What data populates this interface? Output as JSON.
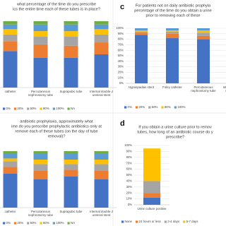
{
  "chart_data": [
    {
      "type": "bar",
      "stacked": true,
      "title": [
        "what percentage of the time do you prescribe",
        "ics the entire time each of these tubes is in place?"
      ],
      "categories": [
        "catheter",
        "Percutaneous nephrostomy tube",
        "Suprapubic tube",
        "Internal double-J ureteral stent"
      ],
      "series": [
        {
          "name": "0%",
          "color": "#4472c4",
          "values": [
            55,
            45,
            45,
            50
          ]
        },
        {
          "name": "20%",
          "color": "#ed7d31",
          "values": [
            15,
            20,
            18,
            18
          ]
        },
        {
          "name": "50%",
          "color": "#a5a5a5",
          "values": [
            10,
            12,
            14,
            12
          ]
        },
        {
          "name": "80%",
          "color": "#ffc000",
          "values": [
            8,
            8,
            8,
            8
          ]
        },
        {
          "name": "100%",
          "color": "#5b9bd5",
          "values": [
            7,
            10,
            10,
            7
          ]
        },
        {
          "name": "NA",
          "color": "#70ad47",
          "values": [
            5,
            5,
            5,
            5
          ]
        }
      ],
      "ylim": [
        0,
        100
      ],
      "grid": false
    },
    {
      "type": "bar",
      "stacked": true,
      "label": "c",
      "title": [
        "For patients not on daily antibiotic prophyla",
        "percentage of the time do you obtain a urine",
        "prior to removing each of these"
      ],
      "categories": [
        "Hypospadias stent",
        "Foley catheter",
        "Percutaneous nephrostomy tube",
        "Internal double-J ureteral stent"
      ],
      "series": [
        {
          "name": "0%",
          "color": "#4472c4",
          "values": [
            88,
            82,
            80,
            75
          ]
        },
        {
          "name": "20%",
          "color": "#ed7d31",
          "values": [
            4,
            8,
            6,
            10
          ]
        },
        {
          "name": "50%",
          "color": "#a5a5a5",
          "values": [
            2,
            4,
            6,
            6
          ]
        },
        {
          "name": "80%",
          "color": "#ffc000",
          "values": [
            2,
            2,
            4,
            4
          ]
        },
        {
          "name": "100%",
          "color": "#5b9bd5",
          "values": [
            4,
            4,
            4,
            5
          ]
        }
      ],
      "ylim": [
        0,
        100
      ],
      "yticks": [
        {
          "value": 0,
          "label": "0%"
        },
        {
          "value": 10,
          "label": "10%"
        },
        {
          "value": 20,
          "label": "20%"
        },
        {
          "value": 30,
          "label": "30%"
        },
        {
          "value": 40,
          "label": "40%"
        },
        {
          "value": 50,
          "label": "50%"
        },
        {
          "value": 60,
          "label": "60%"
        },
        {
          "value": 70,
          "label": "70%"
        },
        {
          "value": 80,
          "label": "80%"
        },
        {
          "value": 90,
          "label": "90%"
        },
        {
          "value": 100,
          "label": "100%"
        }
      ],
      "grid": true
    },
    {
      "type": "bar",
      "stacked": true,
      "title": [
        "antibiotic prophylaxis, approximately what",
        "ime do you prescribe prophylactic antibiotics only at",
        "remove each of these tubes (on the day of tube",
        "removal)?"
      ],
      "categories": [
        "catheter",
        "Percutaneous nephrostomy tube",
        "Suprapubic tube",
        "Internal double-J ureteral stent"
      ],
      "series": [
        {
          "name": "0%",
          "color": "#4472c4",
          "values": [
            60,
            50,
            55,
            50
          ]
        },
        {
          "name": "20%",
          "color": "#ed7d31",
          "values": [
            12,
            15,
            12,
            15
          ]
        },
        {
          "name": "50%",
          "color": "#a5a5a5",
          "values": [
            10,
            12,
            10,
            12
          ]
        },
        {
          "name": "80%",
          "color": "#ffc000",
          "values": [
            5,
            8,
            8,
            8
          ]
        },
        {
          "name": "100%",
          "color": "#5b9bd5",
          "values": [
            8,
            10,
            10,
            10
          ]
        },
        {
          "name": "NA",
          "color": "#70ad47",
          "values": [
            5,
            5,
            5,
            5
          ]
        }
      ],
      "ylim": [
        0,
        100
      ],
      "grid": false
    },
    {
      "type": "bar",
      "stacked": true,
      "label": "d",
      "title": [
        "If you obtain a urine culture prior to remov",
        "tubes, how long of an antibiotic course do y",
        "prescribe?"
      ],
      "categories": [
        "Urine culture positive"
      ],
      "series": [
        {
          "name": "None",
          "color": "#4472c4",
          "values": [
            12
          ]
        },
        {
          "name": "24 hours or less",
          "color": "#ed7d31",
          "values": [
            8
          ]
        },
        {
          "name": "2-4 days",
          "color": "#a5a5a5",
          "values": [
            20
          ]
        },
        {
          "name": "5-7 days",
          "color": "#ffc000",
          "values": [
            55
          ]
        }
      ],
      "ylim": [
        0,
        100
      ],
      "yticks": [
        {
          "value": 0,
          "label": "0%"
        },
        {
          "value": 10,
          "label": "10%"
        },
        {
          "value": 20,
          "label": "20%"
        },
        {
          "value": 30,
          "label": "30%"
        },
        {
          "value": 40,
          "label": "40%"
        },
        {
          "value": 50,
          "label": "50%"
        },
        {
          "value": 60,
          "label": "60%"
        },
        {
          "value": 70,
          "label": "70%"
        },
        {
          "value": 80,
          "label": "80%"
        },
        {
          "value": 90,
          "label": "90%"
        },
        {
          "value": 100,
          "label": "100%"
        }
      ],
      "grid": true
    }
  ]
}
